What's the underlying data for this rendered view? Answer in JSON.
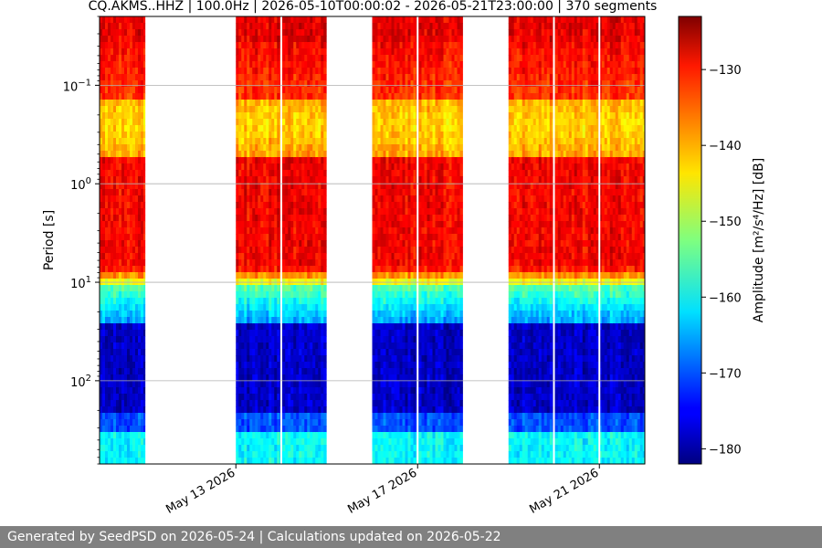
{
  "chart_data": {
    "type": "heatmap",
    "title": "CQ.AKMS..HHZ | 100.0Hz | 2026-05-10T00:00:02 - 2026-05-21T23:00:00 | 370 segments",
    "ylabel": "Period [s]",
    "y_scale": "log",
    "y_inverted": true,
    "ylim_period_s": [
      0.02,
      700
    ],
    "y_ticks": [
      {
        "period": 0.1,
        "base": "10",
        "exp": "−1"
      },
      {
        "period": 1,
        "base": "10",
        "exp": "0"
      },
      {
        "period": 10,
        "base": "10",
        "exp": "1"
      },
      {
        "period": 100,
        "base": "10",
        "exp": "2"
      }
    ],
    "x_axis": {
      "type": "date",
      "range": [
        "2026-05-10",
        "2026-05-22"
      ],
      "ticks": [
        {
          "date": "2026-05-13",
          "label": "May 13 2026"
        },
        {
          "date": "2026-05-17",
          "label": "May 17 2026"
        },
        {
          "date": "2026-05-21",
          "label": "May 21 2026"
        }
      ]
    },
    "data_blocks": [
      {
        "start": "2026-05-10",
        "end": "2026-05-11"
      },
      {
        "start": "2026-05-13",
        "end": "2026-05-15"
      },
      {
        "start": "2026-05-16",
        "end": "2026-05-18"
      },
      {
        "start": "2026-05-19",
        "end": "2026-05-22"
      }
    ],
    "colorbar": {
      "label": "Amplitude [m²/s⁴/Hz] [dB]",
      "colormap": "jet",
      "range_db": [
        -182,
        -123
      ],
      "ticks": [
        -130,
        -140,
        -150,
        -160,
        -170,
        -180
      ]
    },
    "grid": "horizontal"
  },
  "footer": {
    "text": "Generated by SeedPSD on 2026-05-24 | Calculations updated on 2026-05-22"
  }
}
